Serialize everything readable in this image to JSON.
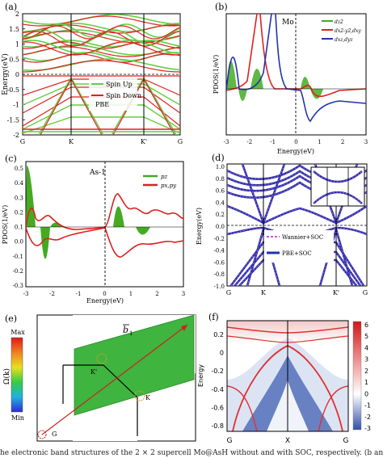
{
  "panels": {
    "a": {
      "letter": "(a)",
      "ylabel": "Energy(eV)",
      "yticks": [
        "2",
        "1.5",
        "1",
        "0.5",
        "0",
        "-0.5",
        "-1",
        "-1.5",
        "-2"
      ],
      "xticks": [
        "G",
        "K",
        "K'",
        "G"
      ],
      "legend": [
        "Spin Up",
        "Spin Down"
      ],
      "method": "PBE",
      "colors": {
        "up": "#66cc44",
        "down": "#dd2222"
      }
    },
    "b": {
      "letter": "(b)",
      "title": "Mo",
      "ylabel": "PDOS(1/eV)",
      "xlabel": "Energy(eV)",
      "xticks": [
        "-3",
        "-2",
        "-1",
        "0",
        "1",
        "2",
        "3"
      ],
      "legend": [
        "dz2",
        "dx2-y2,dxy",
        "dxz,dyz"
      ],
      "colors": {
        "dz2": "#44aa22",
        "dx2y2": "#dd2222",
        "dxz": "#2233aa"
      }
    },
    "c": {
      "letter": "(c)",
      "title": "As-1",
      "ylabel": "PDOS(1/eV)",
      "xlabel": "Energy(eV)",
      "yticks": [
        "0.5",
        "0.4",
        "0.3",
        "0.2",
        "0.1",
        "0.0",
        "-0.1",
        "-0.2",
        "-0.3"
      ],
      "xticks": [
        "-3",
        "-2",
        "-1",
        "0",
        "1",
        "2",
        "3"
      ],
      "legend": [
        "pz",
        "px,py"
      ]
    },
    "d": {
      "letter": "(d)",
      "ylabel": "Energy(eV)",
      "yticks": [
        "1.0",
        "0.8",
        "0.6",
        "0.4",
        "0.2",
        "0.0",
        "-0.2",
        "-0.4",
        "-0.6",
        "-0.8",
        "-1.0"
      ],
      "xticks": [
        "G",
        "K",
        "K'",
        "G"
      ],
      "legend": [
        "Wannier+SOC",
        "PBE+SOC"
      ]
    },
    "e": {
      "letter": "(e)",
      "scale_max": "Max",
      "scale_min": "Min",
      "scale_label": "Ω(k)",
      "point_labels": [
        "K'",
        "K",
        "G"
      ],
      "vector_label": "b",
      "vector_sub": "1"
    },
    "f": {
      "letter": "(f)",
      "ylabel": "Energy",
      "yticks": [
        "0.2",
        "0",
        "-0.2",
        "-0.4",
        "-0.6",
        "-0.8"
      ],
      "xticks": [
        "G",
        "X",
        "G"
      ],
      "cbar_ticks": [
        "6",
        "5",
        "4",
        "3",
        "2",
        "1",
        "0",
        "-1",
        "-2",
        "-3"
      ]
    }
  },
  "caption": "he electronic band structures of the 2 × 2 supercell Mo@AsH without and with SOC, respectively. (b and c) The part"
}
